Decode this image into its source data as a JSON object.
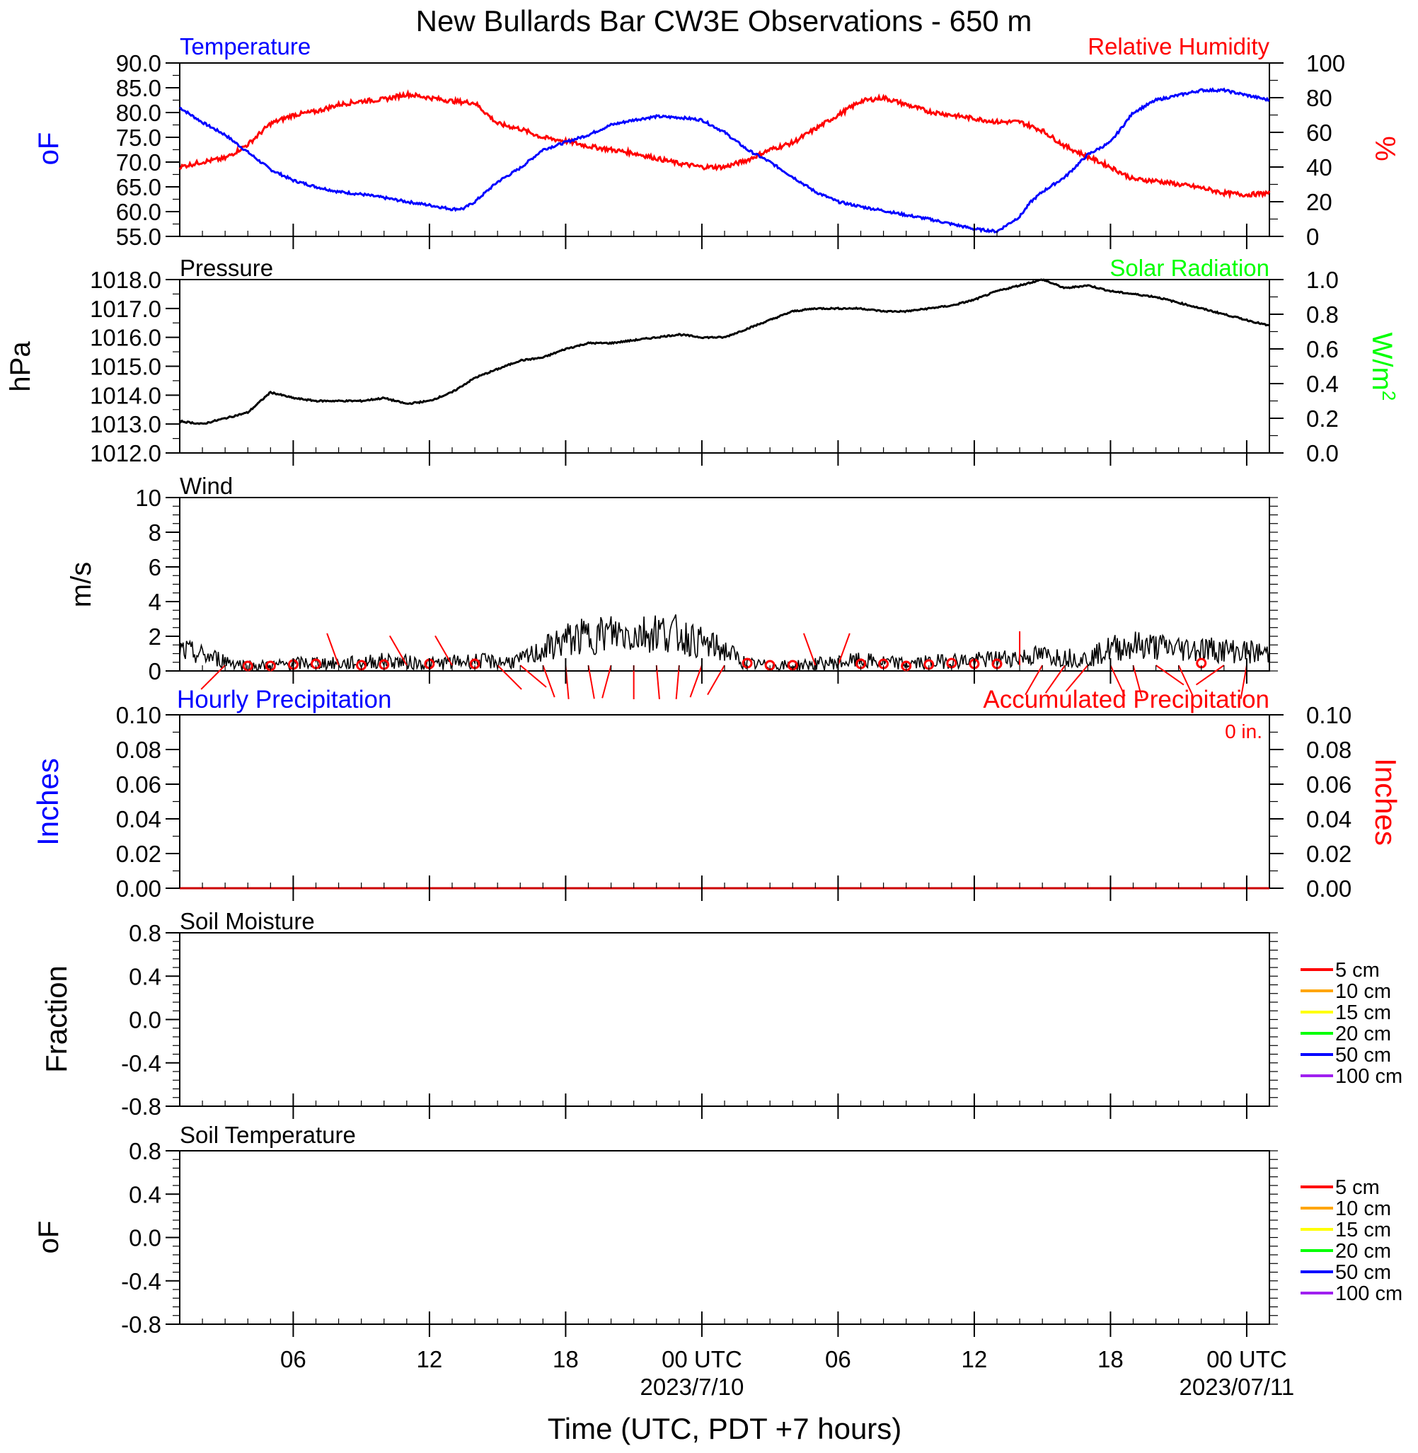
{
  "title": "New Bullards Bar CW3E Observations - 650 m",
  "colors": {
    "temperature": "#0000ff",
    "humidity": "#ff0000",
    "solar": "#00ff00",
    "pressure": "#000000",
    "wind": "#000000",
    "wind_barb": "#ff0000",
    "hourly_precip": "#0000ff",
    "accum_precip": "#ff0000"
  },
  "time_axis": {
    "xlabel": "Time (UTC, PDT +7 hours)",
    "range_hours": [
      0,
      48
    ],
    "ticks": [
      {
        "hour": 5,
        "label": "06",
        "date": ""
      },
      {
        "hour": 11,
        "label": "12",
        "date": ""
      },
      {
        "hour": 17,
        "label": "18",
        "date": ""
      },
      {
        "hour": 23,
        "label": "00 UTC",
        "date": "2023/7/10"
      },
      {
        "hour": 29,
        "label": "06",
        "date": ""
      },
      {
        "hour": 35,
        "label": "12",
        "date": ""
      },
      {
        "hour": 41,
        "label": "18",
        "date": ""
      },
      {
        "hour": 47,
        "label": "00 UTC",
        "date": "2023/07/11"
      }
    ]
  },
  "panels": {
    "temp_rh": {
      "left_title": "Temperature",
      "right_title": "Relative Humidity",
      "left_unit": "oF",
      "right_unit": "%",
      "left_ticks": [
        "90.0",
        "85.0",
        "80.0",
        "75.0",
        "70.0",
        "65.0",
        "60.0",
        "55.0"
      ],
      "right_ticks": [
        "100",
        "80",
        "60",
        "40",
        "20",
        "0"
      ]
    },
    "pressure": {
      "left_title": "Pressure",
      "right_title": "Solar Radiation",
      "left_unit": "hPa",
      "right_unit": "W/m",
      "right_unit_sup": "2",
      "left_ticks": [
        "1018.0",
        "1017.0",
        "1016.0",
        "1015.0",
        "1014.0",
        "1013.0",
        "1012.0"
      ],
      "right_ticks": [
        "1.0",
        "0.8",
        "0.6",
        "0.4",
        "0.2",
        "0.0"
      ]
    },
    "wind": {
      "left_title": "Wind",
      "left_unit": "m/s",
      "left_ticks": [
        "10",
        "8",
        "6",
        "4",
        "2",
        "0"
      ]
    },
    "precip": {
      "left_title": "Hourly Precipitation",
      "right_title": "Accumulated Precipitation",
      "accum_text": "0 in.",
      "left_unit": "Inches",
      "right_unit": "Inches",
      "left_ticks": [
        "0.10",
        "0.08",
        "0.06",
        "0.04",
        "0.02",
        "0.00"
      ],
      "right_ticks": [
        "0.10",
        "0.08",
        "0.06",
        "0.04",
        "0.02",
        "0.00"
      ]
    },
    "soil_moisture": {
      "left_title": "Soil Moisture",
      "left_unit": "Fraction",
      "left_ticks": [
        "0.8",
        "0.4",
        "0.0",
        "-0.4",
        "-0.8"
      ],
      "legend": [
        {
          "label": "5 cm",
          "color": "#ff0000"
        },
        {
          "label": "10 cm",
          "color": "#ffa500"
        },
        {
          "label": "15 cm",
          "color": "#ffff00"
        },
        {
          "label": "20 cm",
          "color": "#00ff00"
        },
        {
          "label": "50 cm",
          "color": "#0000ff"
        },
        {
          "label": "100 cm",
          "color": "#a020f0"
        }
      ]
    },
    "soil_temp": {
      "left_title": "Soil Temperature",
      "left_unit": "oF",
      "left_ticks": [
        "0.8",
        "0.4",
        "0.0",
        "-0.4",
        "-0.8"
      ],
      "legend": [
        {
          "label": "5 cm",
          "color": "#ff0000"
        },
        {
          "label": "10 cm",
          "color": "#ffa500"
        },
        {
          "label": "15 cm",
          "color": "#ffff00"
        },
        {
          "label": "20 cm",
          "color": "#00ff00"
        },
        {
          "label": "50 cm",
          "color": "#0000ff"
        },
        {
          "label": "100 cm",
          "color": "#a020f0"
        }
      ]
    }
  },
  "chart_data": [
    {
      "type": "line",
      "title": "Temperature",
      "ylabel": "oF",
      "ylim": [
        55,
        90
      ],
      "x_unit": "hours since start of record (UTC)",
      "series": [
        {
          "name": "Temperature",
          "x": [
            0,
            1,
            2,
            3,
            4,
            5,
            6,
            7,
            8,
            9,
            10,
            11,
            12,
            12.5,
            13,
            14,
            15,
            16,
            17,
            18,
            19,
            20,
            21,
            22,
            23,
            24,
            25,
            26,
            27,
            28,
            29,
            30,
            31,
            32,
            33,
            34,
            35,
            36,
            37,
            37.5,
            38,
            39,
            40,
            41,
            42,
            43,
            44,
            45,
            46,
            47,
            48
          ],
          "y": [
            81,
            78,
            75.5,
            72,
            68.5,
            66.3,
            65,
            64,
            63.5,
            62.8,
            62,
            61.3,
            60.5,
            60.6,
            62,
            66,
            68.8,
            72.5,
            74,
            75.5,
            77.5,
            78.5,
            79.2,
            79,
            78.5,
            76,
            72.5,
            70,
            67,
            64,
            62,
            61,
            60.2,
            59.3,
            58.5,
            57.5,
            56.5,
            56,
            59,
            62,
            64,
            67,
            71.5,
            74,
            80,
            82.5,
            83.5,
            84.5,
            84.5,
            83.5,
            82.5
          ]
        }
      ]
    },
    {
      "type": "line",
      "title": "Relative Humidity",
      "ylabel": "%",
      "ylim": [
        0,
        100
      ],
      "x_unit": "hours since start of record (UTC)",
      "series": [
        {
          "name": "Relative Humidity",
          "x": [
            0,
            1,
            2,
            3,
            4,
            5,
            6,
            7,
            8,
            9,
            10,
            11,
            12,
            13,
            14,
            15,
            16,
            17,
            18,
            19,
            20,
            21,
            22,
            23,
            24,
            25,
            26,
            27,
            28,
            29,
            30,
            31,
            32,
            33,
            34,
            35,
            36,
            37,
            38,
            39,
            40,
            41,
            42,
            43,
            44,
            45,
            46,
            47,
            48
          ],
          "y": [
            40,
            43,
            45,
            53,
            65,
            70,
            72,
            76,
            78,
            79,
            82,
            80,
            78,
            77,
            65,
            62,
            57,
            55,
            52,
            50,
            48,
            45,
            42,
            40,
            40,
            44,
            50,
            54,
            62,
            70,
            78,
            80,
            76,
            72,
            70,
            68,
            66,
            66,
            61,
            52,
            46,
            40,
            33,
            32,
            30,
            28,
            25,
            24,
            25
          ]
        }
      ]
    },
    {
      "type": "line",
      "title": "Pressure",
      "ylabel": "hPa",
      "ylim": [
        1012,
        1018
      ],
      "x_unit": "hours since start of record (UTC)",
      "series": [
        {
          "name": "Pressure",
          "x": [
            0,
            1,
            2,
            3,
            4,
            5,
            6,
            7,
            8,
            9,
            10,
            11,
            12,
            13,
            14,
            15,
            16,
            17,
            18,
            19,
            20,
            21,
            22,
            23,
            24,
            25,
            26,
            27,
            28,
            29,
            30,
            31,
            32,
            33,
            34,
            35,
            36,
            37,
            38,
            39,
            40,
            41,
            42,
            43,
            44,
            45,
            46,
            47,
            48
          ],
          "y": [
            1013.1,
            1013.0,
            1013.2,
            1013.4,
            1014.1,
            1013.9,
            1013.8,
            1013.8,
            1013.8,
            1013.9,
            1013.7,
            1013.8,
            1014.1,
            1014.6,
            1014.9,
            1015.2,
            1015.3,
            1015.6,
            1015.8,
            1015.8,
            1015.9,
            1016.0,
            1016.1,
            1016.0,
            1016.0,
            1016.3,
            1016.6,
            1016.9,
            1017.0,
            1017.0,
            1017.0,
            1016.9,
            1016.9,
            1017.0,
            1017.1,
            1017.3,
            1017.6,
            1017.8,
            1018.0,
            1017.7,
            1017.8,
            1017.6,
            1017.5,
            1017.4,
            1017.2,
            1017.0,
            1016.8,
            1016.6,
            1016.4
          ]
        }
      ]
    },
    {
      "type": "line",
      "title": "Solar Radiation",
      "ylabel": "W/m2",
      "ylim": [
        0,
        1
      ],
      "series": []
    },
    {
      "type": "line",
      "title": "Wind",
      "ylabel": "m/s",
      "ylim": [
        0,
        10
      ],
      "x_unit": "hours since start of record (UTC)",
      "series": [
        {
          "name": "Wind speed",
          "x": [
            0,
            1,
            2,
            3,
            4,
            5,
            6,
            7,
            8,
            9,
            10,
            11,
            12,
            13,
            14,
            15,
            16,
            17,
            18,
            19,
            20,
            21,
            22,
            23,
            24,
            25,
            26,
            27,
            28,
            29,
            30,
            31,
            32,
            33,
            34,
            35,
            36,
            37,
            38,
            39,
            40,
            41,
            42,
            43,
            44,
            45,
            46,
            47,
            48
          ],
          "y": [
            1.2,
            0.9,
            0.6,
            0.3,
            0.3,
            0.4,
            0.5,
            0.4,
            0.5,
            0.6,
            0.5,
            0.4,
            0.5,
            0.6,
            0.5,
            0.6,
            1.2,
            1.8,
            2.0,
            2.2,
            2.1,
            2.3,
            2.1,
            1.6,
            1.2,
            0.4,
            0.3,
            0.3,
            0.4,
            0.5,
            0.6,
            0.5,
            0.4,
            0.5,
            0.6,
            0.6,
            0.7,
            0.8,
            0.9,
            0.8,
            0.7,
            1.3,
            1.5,
            1.4,
            1.3,
            1.3,
            1.2,
            1.1,
            1.0
          ]
        },
        {
          "name": "Wind barbs",
          "x": [
            2,
            3,
            4,
            5,
            6,
            7,
            8,
            9,
            10,
            11,
            12,
            13,
            14,
            15,
            16,
            17,
            18,
            19,
            20,
            21,
            22,
            23,
            24,
            25,
            26,
            27,
            28,
            29,
            30,
            31,
            32,
            33,
            34,
            35,
            36,
            37,
            38,
            39,
            40,
            41,
            42,
            43,
            44,
            45,
            46,
            47
          ],
          "direction_deg": [
            225,
            0,
            0,
            0,
            0,
            340,
            0,
            0,
            330,
            0,
            330,
            0,
            135,
            130,
            160,
            175,
            170,
            195,
            180,
            175,
            185,
            200,
            210,
            0,
            0,
            0,
            340,
            20,
            0,
            0,
            0,
            0,
            0,
            0,
            0,
            0,
            210,
            215,
            220,
            155,
            165,
            125,
            155,
            0,
            235,
            190
          ],
          "speed": [
            1,
            0.1,
            0.1,
            0.3,
            0.4,
            1,
            0.2,
            0.3,
            1,
            0.4,
            1,
            0.4,
            0.8,
            0.8,
            1.2,
            1.4,
            1.5,
            1.6,
            1.5,
            1.4,
            1.3,
            1.1,
            1.0,
            0.5,
            0.2,
            0.2,
            1,
            1,
            0.4,
            0.4,
            0.1,
            0.3,
            0.5,
            0.4,
            0.4,
            0.9,
            1.2,
            1.3,
            1.3,
            1.4,
            1.2,
            1.2,
            1.2,
            0.5,
            1,
            1
          ]
        }
      ]
    },
    {
      "type": "line",
      "title": "Hourly Precipitation",
      "ylabel": "Inches",
      "ylim": [
        0,
        0.1
      ],
      "series": [
        {
          "name": "Hourly Precipitation",
          "x": [
            0,
            48
          ],
          "y": [
            0,
            0
          ]
        },
        {
          "name": "Accumulated Precipitation",
          "x": [
            0,
            48
          ],
          "y": [
            0,
            0
          ]
        }
      ]
    },
    {
      "type": "line",
      "title": "Soil Moisture",
      "ylabel": "Fraction",
      "ylim": [
        -1,
        1
      ],
      "series": []
    },
    {
      "type": "line",
      "title": "Soil Temperature",
      "ylabel": "oF",
      "ylim": [
        -1,
        1
      ],
      "series": []
    }
  ]
}
